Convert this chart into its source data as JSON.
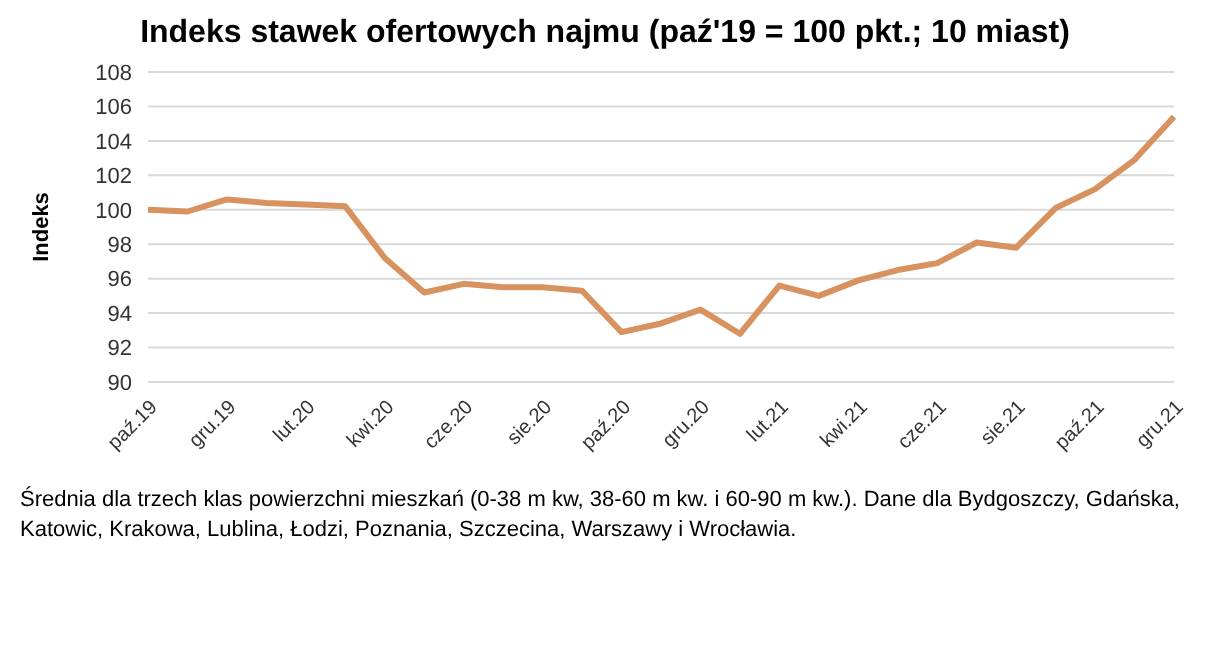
{
  "chart_data": {
    "type": "line",
    "title": "Indeks stawek ofertowych najmu (paź'19 = 100 pkt.; 10 miast)",
    "ylabel": "Indeks",
    "categories": [
      "paź.19",
      null,
      "gru.19",
      null,
      "lut.20",
      null,
      "kwi.20",
      null,
      "cze.20",
      null,
      "sie.20",
      null,
      "paź.20",
      null,
      "gru.20",
      null,
      "lut.21",
      null,
      "kwi.21",
      null,
      "cze.21",
      null,
      "sie.21",
      null,
      "paź.21",
      null,
      "gru.21"
    ],
    "series": [
      {
        "color": "#d8925f",
        "values": [
          100.0,
          99.9,
          100.6,
          100.4,
          100.3,
          100.2,
          97.2,
          95.2,
          95.7,
          95.5,
          95.5,
          95.3,
          92.9,
          93.4,
          94.2,
          92.8,
          95.6,
          95.0,
          95.9,
          96.5,
          96.9,
          98.1,
          97.8,
          100.1,
          101.2,
          102.9,
          105.4
        ]
      }
    ],
    "ylim": [
      90,
      108
    ],
    "yticks": [
      90,
      92,
      94,
      96,
      98,
      100,
      102,
      104,
      106,
      108
    ],
    "grid": "y",
    "legend": false,
    "marker": "none",
    "line_style": "solid",
    "annotations": [
      "Średnia dla trzech klas powierzchni mieszkań (0-38 m kw, 38-60 m kw. i 60-90 m kw.). Dane dla Bydgoszczy, Gdańska, Katowic, Krakowa, Lublina, Łodzi, Poznania, Szczecina, Warszawy i Wrocławia."
    ]
  }
}
